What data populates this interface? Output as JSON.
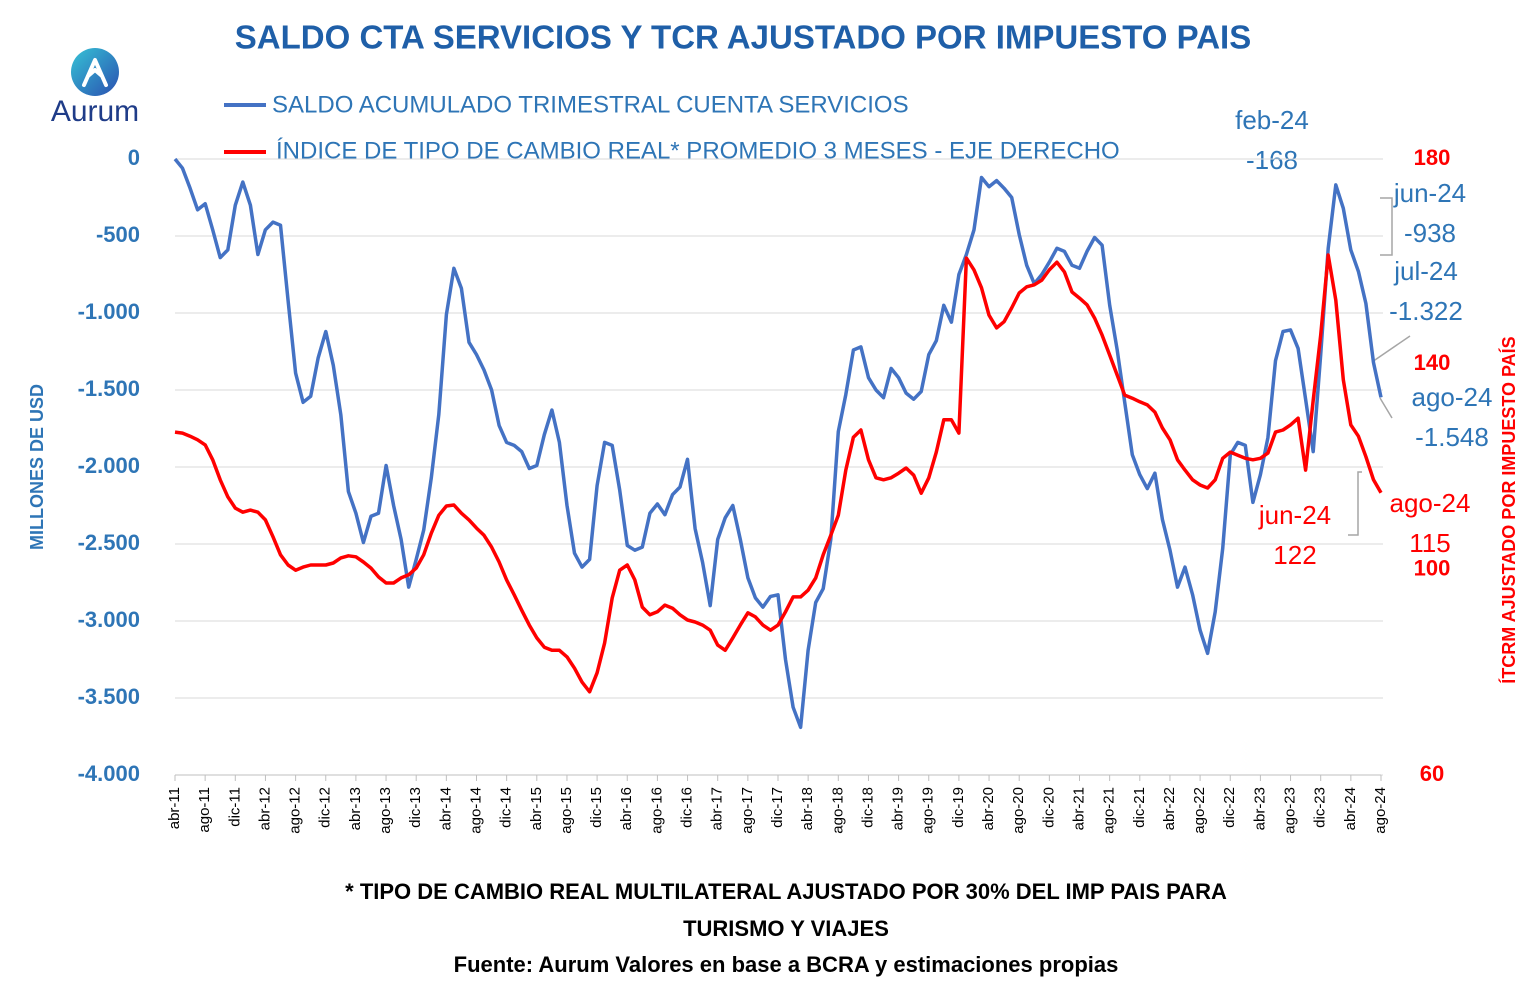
{
  "chart_data": {
    "type": "line",
    "title": "SALDO CTA SERVICIOS Y TCR AJUSTADO POR IMPUESTO PAIS",
    "logo": "Aurum",
    "y_label": "MILLONES DE USD",
    "y2_label": "ÍTCRM AJUSTADO POR IMPUESTO PAÍS",
    "footnote": [
      "* TIPO DE CAMBIO REAL MULTILATERAL AJUSTADO POR 30% DEL IMP PAIS PARA",
      "TURISMO Y VIAJES"
    ],
    "source": "Fuente: Aurum Valores en base a BCRA y estimaciones propias",
    "grid": true,
    "categories": [
      "abr-11",
      null,
      null,
      null,
      "ago-11",
      null,
      null,
      null,
      "dic-11",
      null,
      null,
      null,
      "abr-12",
      null,
      null,
      null,
      "ago-12",
      null,
      null,
      null,
      "dic-12",
      null,
      null,
      null,
      "abr-13",
      null,
      null,
      null,
      "ago-13",
      null,
      null,
      null,
      "dic-13",
      null,
      null,
      null,
      "abr-14",
      null,
      null,
      null,
      "ago-14",
      null,
      null,
      null,
      "dic-14",
      null,
      null,
      null,
      "abr-15",
      null,
      null,
      null,
      "ago-15",
      null,
      null,
      null,
      "dic-15",
      null,
      null,
      null,
      "abr-16",
      null,
      null,
      null,
      "ago-16",
      null,
      null,
      null,
      "dic-16",
      null,
      null,
      null,
      "abr-17",
      null,
      null,
      null,
      "ago-17",
      null,
      null,
      null,
      "dic-17",
      null,
      null,
      null,
      "abr-18",
      null,
      null,
      null,
      "ago-18",
      null,
      null,
      null,
      "dic-18",
      null,
      null,
      null,
      "abr-19",
      null,
      null,
      null,
      "ago-19",
      null,
      null,
      null,
      "dic-19",
      null,
      null,
      null,
      "abr-20",
      null,
      null,
      null,
      "ago-20",
      null,
      null,
      null,
      "dic-20",
      null,
      null,
      null,
      "abr-21",
      null,
      null,
      null,
      "ago-21",
      null,
      null,
      null,
      "dic-21",
      null,
      null,
      null,
      "abr-22",
      null,
      null,
      null,
      "ago-22",
      null,
      null,
      null,
      "dic-22",
      null,
      null,
      null,
      "abr-23",
      null,
      null,
      null,
      "ago-23",
      null,
      null,
      null,
      "dic-23",
      null,
      null,
      null,
      "abr-24",
      null,
      null,
      null,
      "ago-24"
    ],
    "ylim": [
      -4000,
      0
    ],
    "yticks": [
      0,
      -500,
      {
        "value": -1000,
        "label": "-1.000"
      },
      {
        "value": -1500,
        "label": "-1.500"
      },
      {
        "value": -2000,
        "label": "-2.000"
      },
      {
        "value": -2500,
        "label": "-2.500"
      },
      {
        "value": -3000,
        "label": "-3.000"
      },
      {
        "value": -3500,
        "label": "-3.500"
      },
      {
        "value": -4000,
        "label": "-4.000"
      }
    ],
    "y2lim": [
      60,
      180
    ],
    "y2ticks": [
      180,
      140,
      100,
      60
    ],
    "series": [
      {
        "name": "SALDO ACUMULADO TRIMESTRAL CUENTA SERVICIOS",
        "color": "#4472c4",
        "values": [
          0,
          -60,
          -190,
          -330,
          -290,
          -460,
          -640,
          -590,
          -300,
          -150,
          -300,
          -620,
          -460,
          -410,
          -430,
          -920,
          -1390,
          -1580,
          -1540,
          -1290,
          -1120,
          -1340,
          -1660,
          -2160,
          -2300,
          -2490,
          -2320,
          -2300,
          -1990,
          -2250,
          -2470,
          -2780,
          -2600,
          -2410,
          -2070,
          -1660,
          -1010,
          -710,
          -840,
          -1190,
          -1270,
          -1370,
          -1500,
          -1730,
          -1840,
          -1860,
          -1900,
          -2010,
          -1990,
          -1790,
          -1630,
          -1840,
          -2250,
          -2560,
          -2650,
          -2600,
          -2120,
          -1840,
          -1860,
          -2150,
          -2510,
          -2540,
          -2520,
          -2300,
          -2240,
          -2310,
          -2180,
          -2130,
          -1950,
          -2400,
          -2620,
          -2900,
          -2470,
          -2330,
          -2250,
          -2470,
          -2720,
          -2850,
          -2910,
          -2840,
          -2830,
          -3250,
          -3560,
          -3690,
          -3190,
          -2880,
          -2790,
          -2470,
          -1770,
          -1530,
          -1240,
          -1220,
          -1420,
          -1500,
          -1550,
          -1360,
          -1420,
          -1520,
          -1560,
          -1510,
          -1270,
          -1180,
          -950,
          -1060,
          -750,
          -620,
          -460,
          -120,
          -180,
          -140,
          -190,
          -250,
          -490,
          -690,
          -810,
          -750,
          -670,
          -580,
          -600,
          -690,
          -710,
          -600,
          -510,
          -560,
          -950,
          -1240,
          -1580,
          -1920,
          -2050,
          -2140,
          -2040,
          -2340,
          -2540,
          -2780,
          -2650,
          -2830,
          -3060,
          -3210,
          -2940,
          -2530,
          -1920,
          -1840,
          -1860,
          -2230,
          -2050,
          -1810,
          -1310,
          -1120,
          -1110,
          -1230,
          -1560,
          -1900,
          -1270,
          -580,
          -168,
          -320,
          -590,
          -730,
          -938,
          -1322,
          -1548
        ]
      },
      {
        "name": "ÍNDICE DE TIPO DE CAMBIO REAL* PROMEDIO 3 MESES - EJE DERECHO",
        "color": "#ff0000",
        "axis": "y2",
        "values": [
          126.8,
          126.6,
          126,
          125.3,
          124.3,
          121.4,
          117.5,
          114.2,
          112,
          111.2,
          111.6,
          111.2,
          109.7,
          106.4,
          102.9,
          100.9,
          99.9,
          100.5,
          100.9,
          100.9,
          100.9,
          101.3,
          102.3,
          102.7,
          102.5,
          101.5,
          100.3,
          98.6,
          97.4,
          97.4,
          98.4,
          99,
          100.3,
          102.9,
          107.1,
          110.6,
          112.4,
          112.6,
          111,
          109.7,
          108.1,
          106.7,
          104.4,
          101.5,
          98,
          95.1,
          92.1,
          89.2,
          86.7,
          84.9,
          84.3,
          84.3,
          83,
          80.8,
          78.1,
          76.2,
          79.9,
          85.7,
          94.5,
          99.9,
          100.9,
          98,
          92.7,
          91.2,
          91.8,
          93.1,
          92.5,
          91.2,
          90.2,
          89.8,
          89.2,
          88.2,
          85.3,
          84.3,
          86.7,
          89.2,
          91.6,
          90.8,
          89.2,
          88.2,
          89.2,
          91.8,
          94.7,
          94.7,
          96,
          98.4,
          102.9,
          106.7,
          110.6,
          119.4,
          125.8,
          127.2,
          121.4,
          117.9,
          117.5,
          117.9,
          118.8,
          119.8,
          118.4,
          114.9,
          117.9,
          122.9,
          129.2,
          129.2,
          126.6,
          160.7,
          158.4,
          154.9,
          149.6,
          147.1,
          148.3,
          151,
          153.9,
          155.1,
          155.5,
          156.4,
          158.4,
          159.9,
          158,
          154.1,
          152.9,
          151.6,
          149,
          145.7,
          141.8,
          137.9,
          134,
          133.4,
          132.7,
          132.1,
          130.7,
          127.6,
          125.3,
          121.4,
          119.4,
          117.5,
          116.5,
          115.9,
          117.5,
          121.7,
          122.9,
          122.3,
          121.7,
          121.4,
          121.7,
          122.7,
          126.8,
          127.2,
          128.2,
          129.5,
          119.4,
          133,
          145.7,
          161.3,
          152.5,
          137,
          128.2,
          126,
          122,
          117.5,
          115
        ]
      }
    ],
    "annotations": [
      {
        "label": "feb-24",
        "value_label": "-168"
      },
      {
        "label": "jun-24",
        "value_label": "-938"
      },
      {
        "label": "jul-24",
        "value_label": "-1.322"
      },
      {
        "label": "ago-24",
        "value_label": "-1.548"
      },
      {
        "label": "jun-24",
        "value_label": "122"
      },
      {
        "label": "ago-24",
        "value_label": "115"
      }
    ]
  }
}
